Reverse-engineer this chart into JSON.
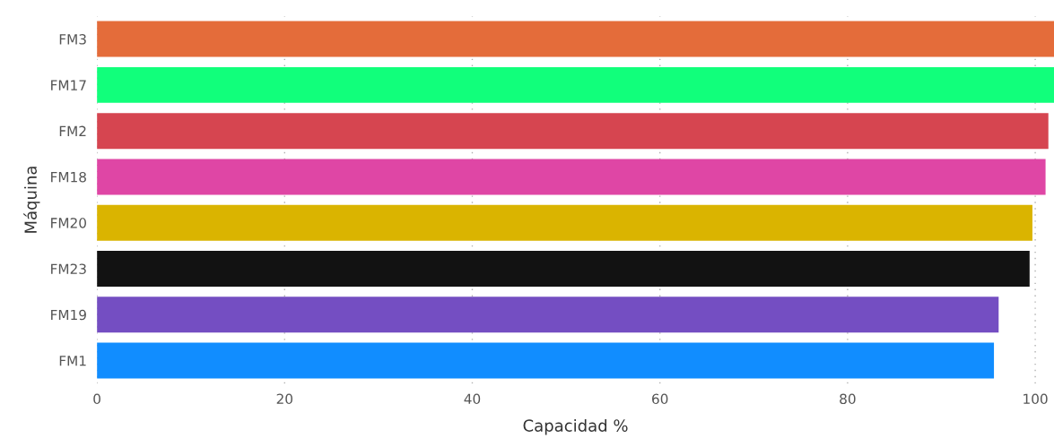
{
  "chart_data": {
    "type": "bar",
    "orientation": "horizontal",
    "xlabel": "Capacidad %",
    "ylabel": "Máquina",
    "categories": [
      "FM3",
      "FM17",
      "FM2",
      "FM18",
      "FM20",
      "FM23",
      "FM19",
      "FM1"
    ],
    "values": [
      102,
      102,
      101.4,
      101.1,
      99.7,
      99.4,
      96.1,
      95.6
    ],
    "colors": [
      "#e46c3a",
      "#11ff7b",
      "#d64550",
      "#df46a5",
      "#dab400",
      "#121212",
      "#744ec2",
      "#118dff"
    ],
    "xlim": [
      0,
      102
    ],
    "xticks": [
      0,
      20,
      40,
      60,
      80,
      100
    ],
    "grid": "x",
    "legend": false
  }
}
